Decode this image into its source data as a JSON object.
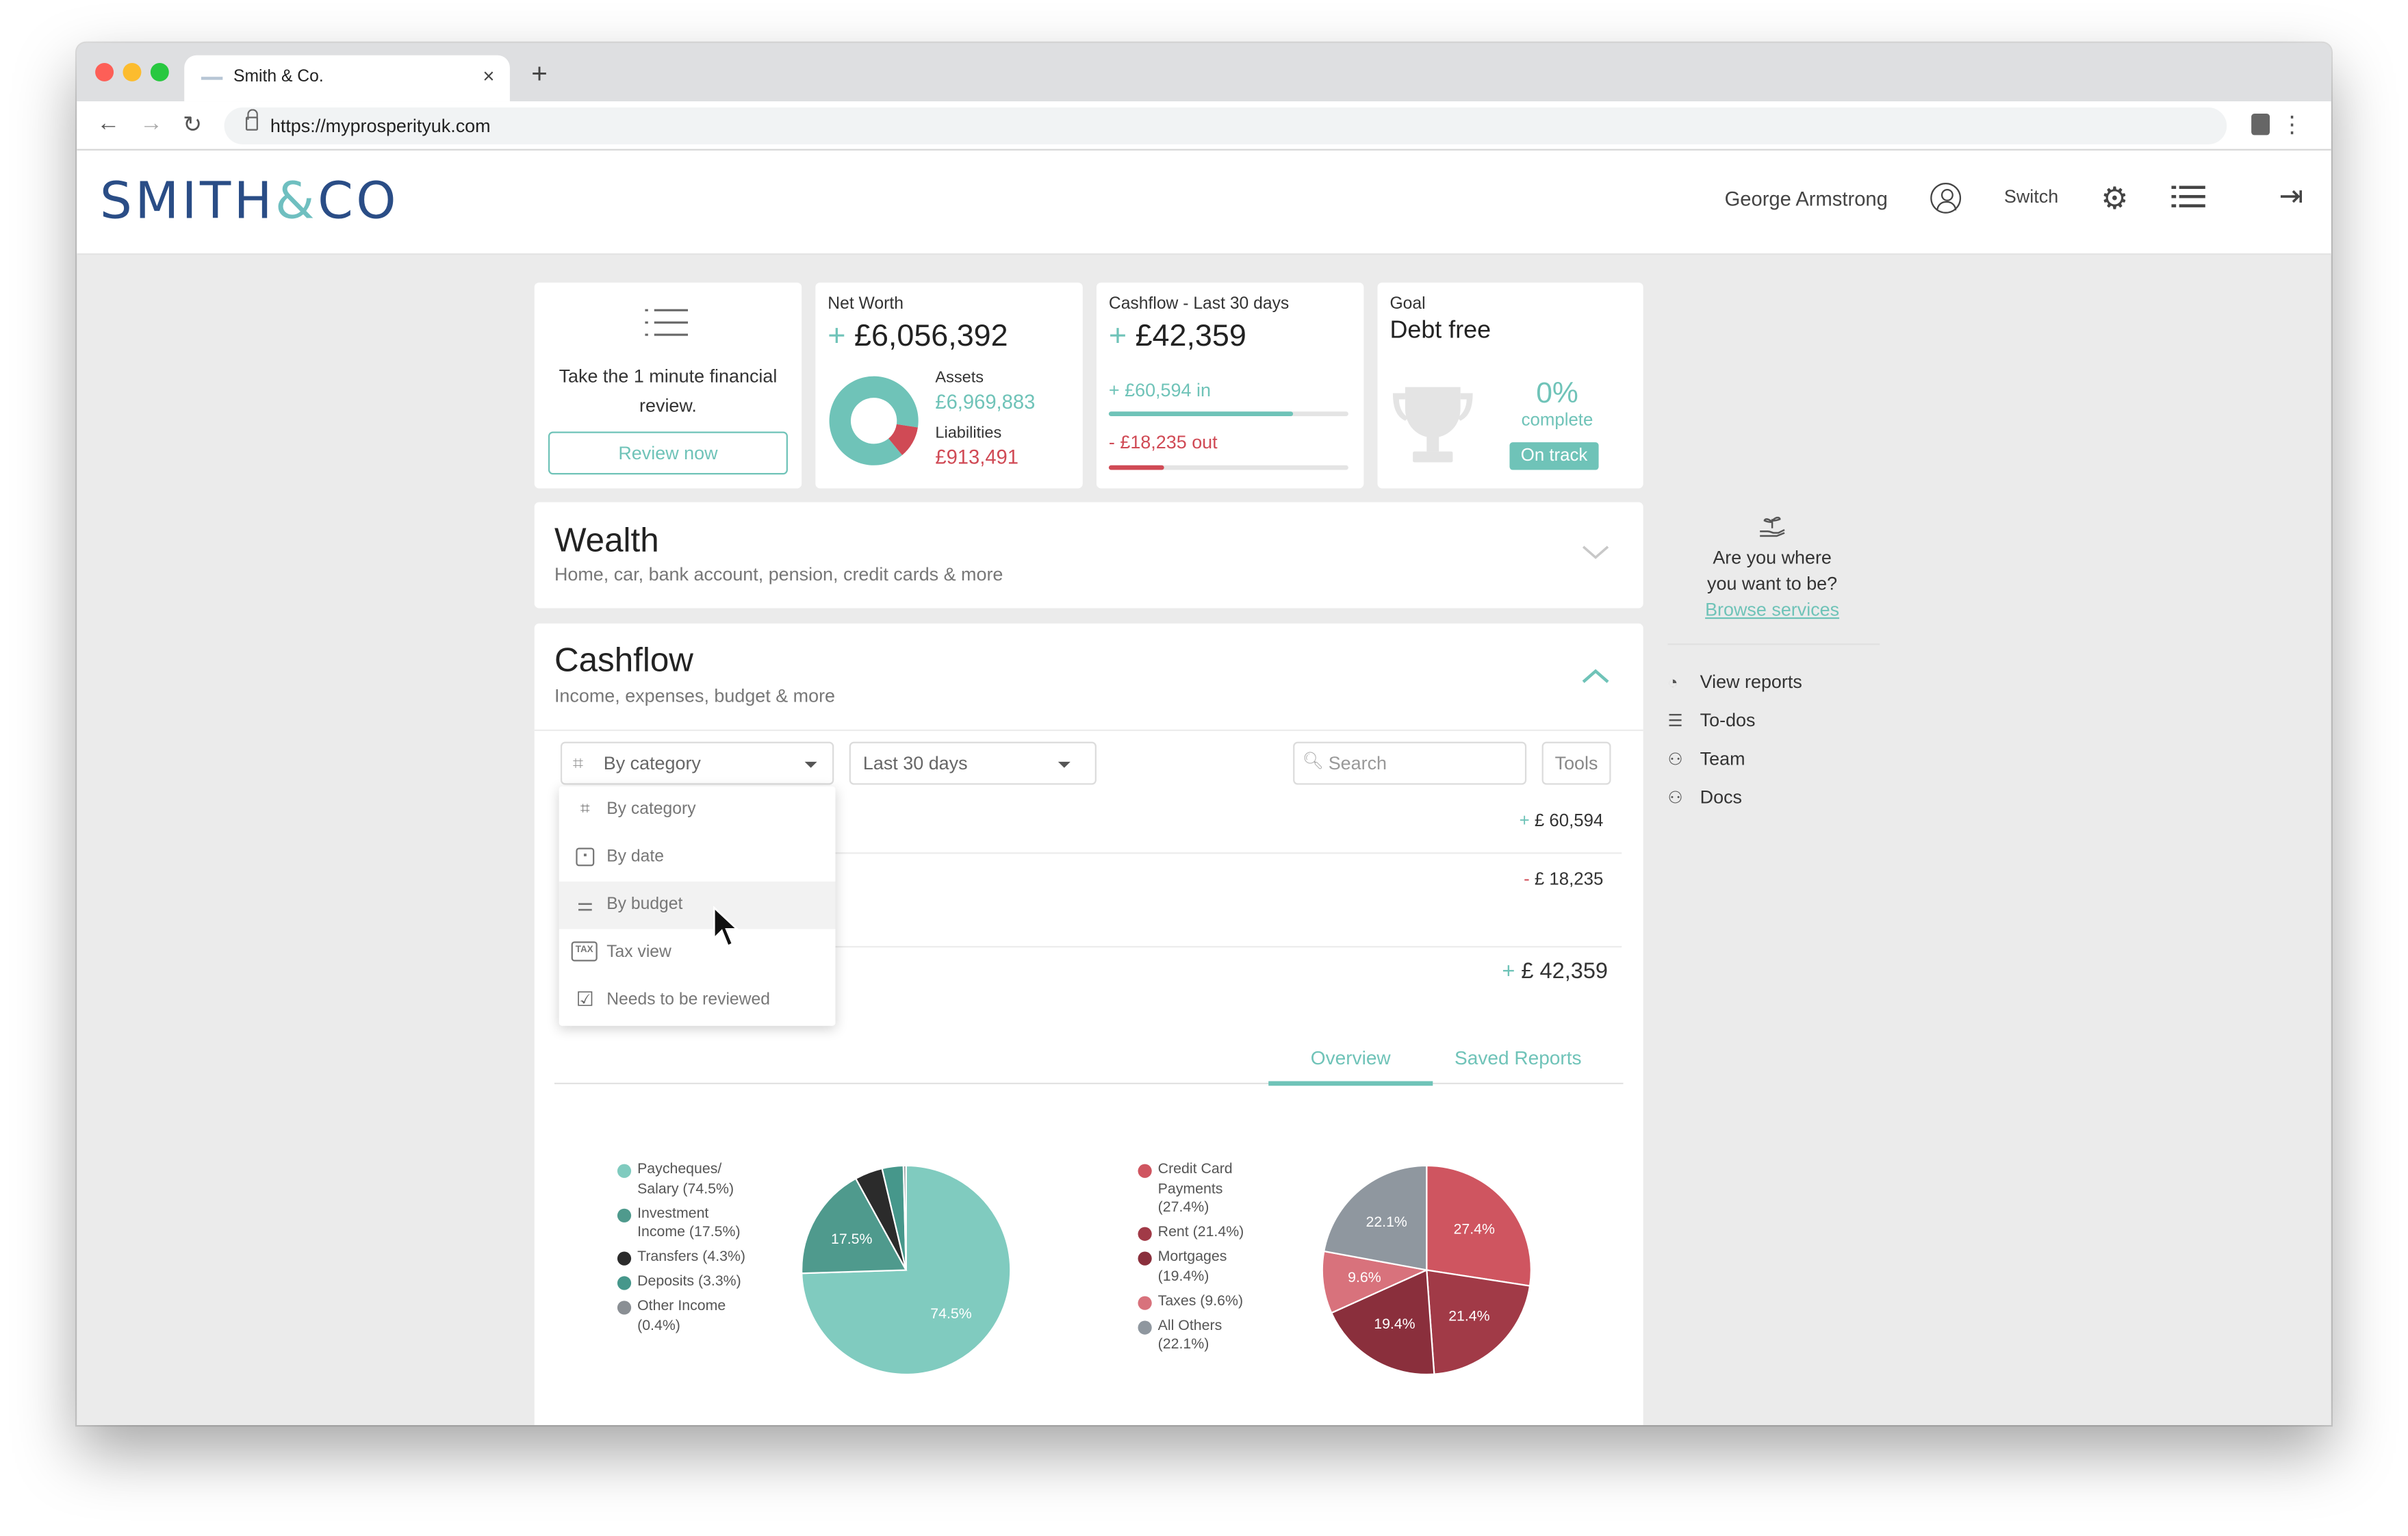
{
  "browser": {
    "tab_title": "Smith & Co.",
    "new_tab": "+",
    "close": "×",
    "url": "https://myprosperityuk.com"
  },
  "header": {
    "logo_left": "SMITH",
    "logo_amp": "&",
    "logo_right": "CO",
    "user_name": "George Armstrong",
    "switch_label": "Switch"
  },
  "review_card": {
    "text": "Take the 1 minute financial review.",
    "button": "Review now"
  },
  "net_worth": {
    "title": "Net Worth",
    "sign": "+",
    "value": "£6,056,392",
    "assets_label": "Assets",
    "assets_value": "£6,969,883",
    "liabilities_label": "Liabilities",
    "liabilities_value": "£913,491",
    "assets_fraction": 0.884
  },
  "cashflow_card": {
    "title": "Cashflow - Last 30 days",
    "sign": "+",
    "value": "£42,359",
    "in_sign": "+",
    "in_value": "£60,594",
    "in_suffix": "in",
    "out_sign": "-",
    "out_value": "£18,235",
    "out_suffix": "out",
    "in_fraction": 0.77,
    "out_fraction": 0.23
  },
  "goal_card": {
    "label": "Goal",
    "title": "Debt free",
    "percent": "0%",
    "complete": "complete",
    "status": "On track"
  },
  "wealth": {
    "title": "Wealth",
    "subtitle": "Home, car, bank account, pension, credit cards & more"
  },
  "cashflow": {
    "title": "Cashflow",
    "subtitle": "Income, expenses, budget & more",
    "group_select": "By category",
    "period_select": "Last 30 days",
    "search_placeholder": "Search",
    "tools": "Tools",
    "rows": [
      {
        "sign": "+",
        "value": "£ 60,594"
      },
      {
        "sign": "-",
        "value": "£ 18,235"
      }
    ],
    "total_sign": "+",
    "total_value": "£ 42,359",
    "tabs": [
      "Overview",
      "Saved Reports"
    ]
  },
  "dropdown": {
    "items": [
      {
        "label": "By category",
        "icon": "sitemap-icon"
      },
      {
        "label": "By date",
        "icon": "calendar-icon"
      },
      {
        "label": "By budget",
        "icon": "sliders-icon"
      },
      {
        "label": "Tax view",
        "icon": "tax-icon",
        "icon_text": "TAX"
      },
      {
        "label": "Needs to be reviewed",
        "icon": "checkbox-icon"
      }
    ]
  },
  "sidebar": {
    "prompt_line1": "Are you where",
    "prompt_line2": "you want to be?",
    "browse": "Browse services",
    "links": [
      {
        "label": "View reports",
        "icon": "chart-icon"
      },
      {
        "label": "To-dos",
        "icon": "checklist-icon"
      },
      {
        "label": "Team",
        "icon": "team-icon"
      },
      {
        "label": "Docs",
        "icon": "docs-icon"
      }
    ]
  },
  "chart_data": [
    {
      "type": "pie",
      "legend": [
        [
          "Paycheques/",
          "Salary (74.5%)"
        ],
        [
          "Investment",
          "Income (17.5%)"
        ],
        [
          "Transfers (4.3%)"
        ],
        [
          "Deposits (3.3%)"
        ],
        [
          "Other Income",
          "(0.4%)"
        ]
      ],
      "values": [
        74.5,
        17.5,
        4.3,
        3.3,
        0.4
      ],
      "colors": [
        "#80cbbf",
        "#4f9a8d",
        "#2b2b2b",
        "#46978b",
        "#8a8f94"
      ],
      "slice_labels": [
        "74.5%",
        "17.5%",
        "",
        "",
        ""
      ]
    },
    {
      "type": "pie",
      "legend": [
        [
          "Credit Card",
          "Payments",
          "(27.4%)"
        ],
        [
          "Rent (21.4%)"
        ],
        [
          "Mortgages",
          "(19.4%)"
        ],
        [
          "Taxes (9.6%)"
        ],
        [
          "All Others",
          "(22.1%)"
        ]
      ],
      "values": [
        27.4,
        21.4,
        19.4,
        9.6,
        22.1
      ],
      "colors": [
        "#cf5560",
        "#a13a47",
        "#8a2f3c",
        "#d8727c",
        "#8f979f"
      ],
      "slice_labels": [
        "27.4%",
        "21.4%",
        "19.4%",
        "9.6%",
        "22.1%"
      ]
    }
  ]
}
